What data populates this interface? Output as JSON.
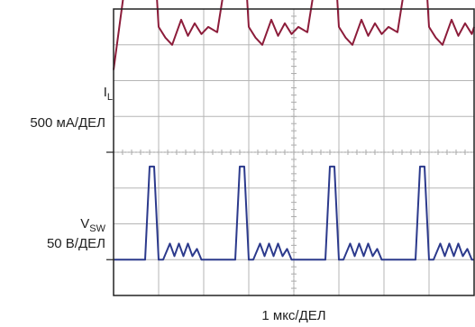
{
  "chart_data": {
    "type": "line",
    "x_label": "1 мкс/ДЕЛ",
    "grid": true,
    "divisions": {
      "x": 8,
      "y": 8
    },
    "channels": [
      {
        "label_main": "I",
        "label_sub": "L",
        "scale": "500 мА/ДЕЛ",
        "color": "#8c1c3a",
        "baseline_div": 4.0,
        "x": [
          0,
          0.5,
          0.8,
          1.0,
          1.15,
          1.3,
          1.5,
          1.65,
          1.8,
          1.95,
          2.1,
          2.3,
          2.5,
          2.8,
          3.0,
          3.15,
          3.3,
          3.5,
          3.65,
          3.8,
          3.95,
          4.1,
          4.3,
          4.5,
          4.8,
          5.0,
          5.15,
          5.3,
          5.5,
          5.65,
          5.8,
          5.95,
          6.1,
          6.3,
          6.5,
          6.8,
          7.0,
          7.15,
          7.3,
          7.5,
          7.65,
          7.8,
          7.95,
          8.0
        ],
        "y": [
          2.3,
          7.0,
          7.7,
          3.5,
          3.2,
          3.0,
          3.7,
          3.25,
          3.6,
          3.3,
          3.5,
          3.35,
          4.95,
          7.7,
          3.5,
          3.2,
          3.0,
          3.7,
          3.25,
          3.6,
          3.3,
          3.5,
          3.35,
          4.95,
          7.7,
          3.5,
          3.2,
          3.0,
          3.7,
          3.25,
          3.6,
          3.3,
          3.5,
          3.35,
          4.95,
          7.7,
          3.5,
          3.2,
          3.0,
          3.7,
          3.25,
          3.6,
          3.3,
          3.5
        ]
      },
      {
        "label_main": "V",
        "label_sub": "SW",
        "scale": "50 В/ДЕЛ",
        "color": "#2c3a8c",
        "baseline_div": 1.0,
        "x": [
          0,
          0.7,
          0.8,
          0.9,
          1.0,
          1.1,
          1.25,
          1.35,
          1.45,
          1.55,
          1.65,
          1.75,
          1.85,
          1.95,
          2.0,
          2.7,
          2.8,
          2.9,
          3.0,
          3.1,
          3.25,
          3.35,
          3.45,
          3.55,
          3.65,
          3.75,
          3.85,
          3.95,
          4.0,
          4.7,
          4.8,
          4.9,
          5.0,
          5.1,
          5.25,
          5.35,
          5.45,
          5.55,
          5.65,
          5.75,
          5.85,
          5.95,
          6.0,
          6.7,
          6.8,
          6.9,
          7.0,
          7.1,
          7.25,
          7.35,
          7.45,
          7.55,
          7.65,
          7.75,
          7.85,
          7.95,
          8.0
        ],
        "y": [
          0.0,
          0.0,
          2.6,
          2.6,
          0.0,
          0.0,
          0.45,
          0.1,
          0.45,
          0.1,
          0.45,
          0.1,
          0.3,
          0.0,
          0.0,
          0.0,
          2.6,
          2.6,
          0.0,
          0.0,
          0.45,
          0.1,
          0.45,
          0.1,
          0.45,
          0.1,
          0.3,
          0.0,
          0.0,
          0.0,
          2.6,
          2.6,
          0.0,
          0.0,
          0.45,
          0.1,
          0.45,
          0.1,
          0.45,
          0.1,
          0.3,
          0.0,
          0.0,
          0.0,
          2.6,
          2.6,
          0.0,
          0.0,
          0.45,
          0.1,
          0.45,
          0.1,
          0.45,
          0.1,
          0.3,
          0.0,
          0.0
        ]
      }
    ]
  }
}
